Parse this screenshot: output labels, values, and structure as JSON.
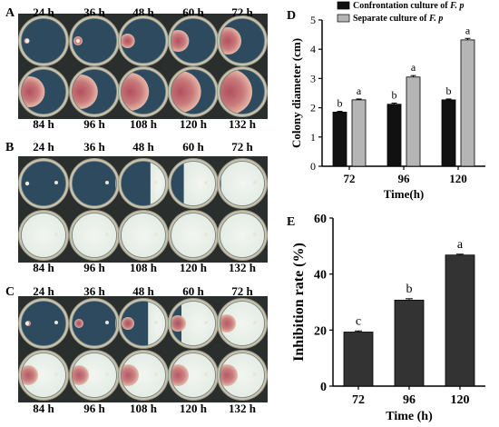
{
  "panels": {
    "A": {
      "letter": "A",
      "top_labels": [
        "24 h",
        "36 h",
        "48 h",
        "60 h",
        "72 h"
      ],
      "bottom_labels": [
        "84 h",
        "96 h",
        "108 h",
        "120 h",
        "132 h"
      ]
    },
    "B": {
      "letter": "B",
      "top_labels": [
        "24 h",
        "36 h",
        "48 h",
        "60 h",
        "72 h"
      ],
      "bottom_labels": [
        "84 h",
        "96 h",
        "108 h",
        "120 h",
        "132 h"
      ]
    },
    "C": {
      "letter": "C",
      "top_labels": [
        "24 h",
        "36 h",
        "48 h",
        "60 h",
        "72 h"
      ],
      "bottom_labels": [
        "84 h",
        "96 h",
        "108 h",
        "120 h",
        "132 h"
      ]
    }
  },
  "colors": {
    "dish_rim": "#c9c4b0",
    "agar_blue": "#2e4a5e",
    "colony_red": "#c87a7a",
    "colony_white": "#e3ece4",
    "bar_black": "#111111",
    "bar_gray": "#b5b5b5",
    "bar_dark": "#333333"
  },
  "chart_data": [
    {
      "panel": "D",
      "type": "bar",
      "categories": [
        "72",
        "96",
        "120"
      ],
      "series": [
        {
          "name_prefix": "Confrontation culture of ",
          "name_italic": "F. p",
          "values": [
            1.85,
            2.12,
            2.27
          ],
          "errors": [
            0.03,
            0.04,
            0.03
          ],
          "letters": [
            "b",
            "b",
            "b"
          ],
          "color": "#111111"
        },
        {
          "name_prefix": "Separate culture of ",
          "name_italic": "F. p",
          "values": [
            2.27,
            3.05,
            4.32
          ],
          "errors": [
            0.03,
            0.05,
            0.05
          ],
          "letters": [
            "a",
            "a",
            "a"
          ],
          "color": "#b5b5b5"
        }
      ],
      "xlabel": "Time(h)",
      "ylabel": "Colony diameter (cm)",
      "ylim": [
        0,
        5
      ],
      "yticks": [
        "0",
        "1",
        "2",
        "3",
        "4",
        "5"
      ],
      "legend": "top"
    },
    {
      "panel": "E",
      "type": "bar",
      "categories": [
        "72",
        "96",
        "120"
      ],
      "values": [
        19.3,
        30.7,
        46.8
      ],
      "errors": [
        0.4,
        0.5,
        0.3
      ],
      "letters": [
        "c",
        "b",
        "a"
      ],
      "xlabel": "Time (h)",
      "ylabel": "Inhibition rate (%)",
      "ylim": [
        0,
        60
      ],
      "yticks": [
        "0",
        "20",
        "40",
        "60"
      ]
    }
  ]
}
